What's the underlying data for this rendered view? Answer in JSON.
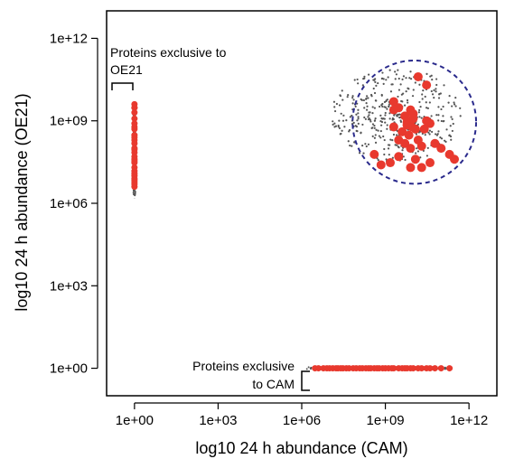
{
  "chart_data": {
    "type": "scatter",
    "xlabel": "log10 24 h abundance (CAM)",
    "ylabel": "log10 24 h abundance (OE21)",
    "x_scale": "log10",
    "y_scale": "log10",
    "xlim": [
      0.1,
      10000000000000.0
    ],
    "ylim": [
      0.1,
      10000000000000.0
    ],
    "x_ticks": [
      {
        "value": 1,
        "label": "1e+00"
      },
      {
        "value": 1000.0,
        "label": "1e+03"
      },
      {
        "value": 1000000.0,
        "label": "1e+06"
      },
      {
        "value": 1000000000.0,
        "label": "1e+09"
      },
      {
        "value": 1000000000000.0,
        "label": "1e+12"
      }
    ],
    "y_ticks": [
      {
        "value": 1,
        "label": "1e+00"
      },
      {
        "value": 1000.0,
        "label": "1e+03"
      },
      {
        "value": 1000000.0,
        "label": "1e+06"
      },
      {
        "value": 1000000000.0,
        "label": "1e+09"
      },
      {
        "value": 1000000000000.0,
        "label": "1e+12"
      }
    ],
    "grid": false,
    "colors": {
      "highlight": "#e8392e",
      "background_points": "#555555",
      "circle": "#2a2a8c",
      "axis": "#000000"
    },
    "annotations": [
      {
        "text_lines": [
          "Proteins exclusive to",
          "OE21"
        ]
      },
      {
        "text_lines": [
          "Proteins exclusive",
          "to CAM"
        ]
      }
    ],
    "series": [
      {
        "values_x": [
          1,
          1,
          1,
          1,
          1,
          1,
          1,
          1,
          1,
          1,
          1,
          1,
          1,
          1,
          1,
          1,
          1,
          1,
          1,
          1,
          1,
          1,
          1,
          1,
          1,
          1,
          1,
          1
        ],
        "values_y": [
          4000000000.0,
          3000000000.0,
          2000000000.0,
          1200000000.0,
          800000000.0,
          500000000.0,
          300000000.0,
          200000000.0,
          150000000.0,
          100000000.0,
          70000000.0,
          50000000.0,
          40000000.0,
          30000000.0,
          20000000.0,
          15000000.0,
          10000000.0,
          8000000.0,
          6000000.0,
          4000000.0,
          3000000000.0,
          600000000.0,
          250000000.0,
          90000000.0,
          35000000.0,
          12000000.0,
          7000000.0,
          5000000.0
        ]
      },
      {
        "values_x": [
          3000000.0,
          4000000.0,
          6000000.0,
          8000000.0,
          10000000.0,
          13000000.0,
          17000000.0,
          20000000.0,
          25000000.0,
          30000000.0,
          40000000.0,
          50000000.0,
          70000000.0,
          90000000.0,
          120000000.0,
          150000000.0,
          200000000.0,
          250000000.0,
          300000000.0,
          400000000.0,
          500000000.0,
          600000000.0,
          800000000.0,
          1000000000.0,
          1300000000.0,
          1700000000.0,
          2000000000.0,
          3000000000.0,
          4000000000.0,
          5000000000.0,
          6000000000.0,
          8000000000.0,
          10000000000.0,
          15000000000.0,
          20000000000.0,
          30000000000.0,
          40000000000.0,
          60000000000.0,
          100000000000.0,
          200000000000.0
        ],
        "values_y": [
          1,
          1,
          1,
          1,
          1,
          1,
          1,
          1,
          1,
          1,
          1,
          1,
          1,
          1,
          1,
          1,
          1,
          1,
          1,
          1,
          1,
          1,
          1,
          1,
          1,
          1,
          1,
          1,
          1,
          1,
          1,
          1,
          1,
          1,
          1,
          1,
          1,
          1,
          1,
          1
        ]
      },
      {
        "values_x": [
          2000000000.0,
          3000000000.0,
          8000000000.0,
          15000000000.0,
          5000000000.0,
          10000000000.0,
          30000000000.0,
          6000000000.0,
          2000000000.0,
          9000000000.0,
          4000000000.0,
          7000000000.0,
          12000000000.0,
          25000000000.0,
          40000000000.0,
          15000000000.0,
          3000000000.0,
          5000000000.0,
          8000000000.0,
          20000000000.0,
          60000000000.0,
          100000000000.0,
          200000000000.0,
          300000000000.0,
          40000000000.0,
          12000000000.0,
          20000000000.0,
          8000000000.0,
          3000000000.0,
          1500000000.0,
          700000000.0,
          400000000.0,
          6000000000.0,
          2000000000.0,
          10000000000.0,
          30000000000.0
        ],
        "values_y": [
          5000000000.0,
          3000000000.0,
          2500000000.0,
          40000000000.0,
          1500000000.0,
          1800000000.0,
          20000000000.0,
          900000000.0,
          600000000.0,
          600000000.0,
          400000000.0,
          300000000.0,
          500000000.0,
          500000000.0,
          800000000.0,
          200000000.0,
          200000000.0,
          150000000.0,
          100000000.0,
          120000000.0,
          150000000.0,
          100000000.0,
          60000000.0,
          40000000.0,
          30000000.0,
          40000000.0,
          20000000.0,
          20000000.0,
          50000000.0,
          30000000.0,
          25000000.0,
          60000000.0,
          700000000.0,
          2500000000.0,
          1200000000.0,
          1000000000.0
        ]
      }
    ]
  }
}
